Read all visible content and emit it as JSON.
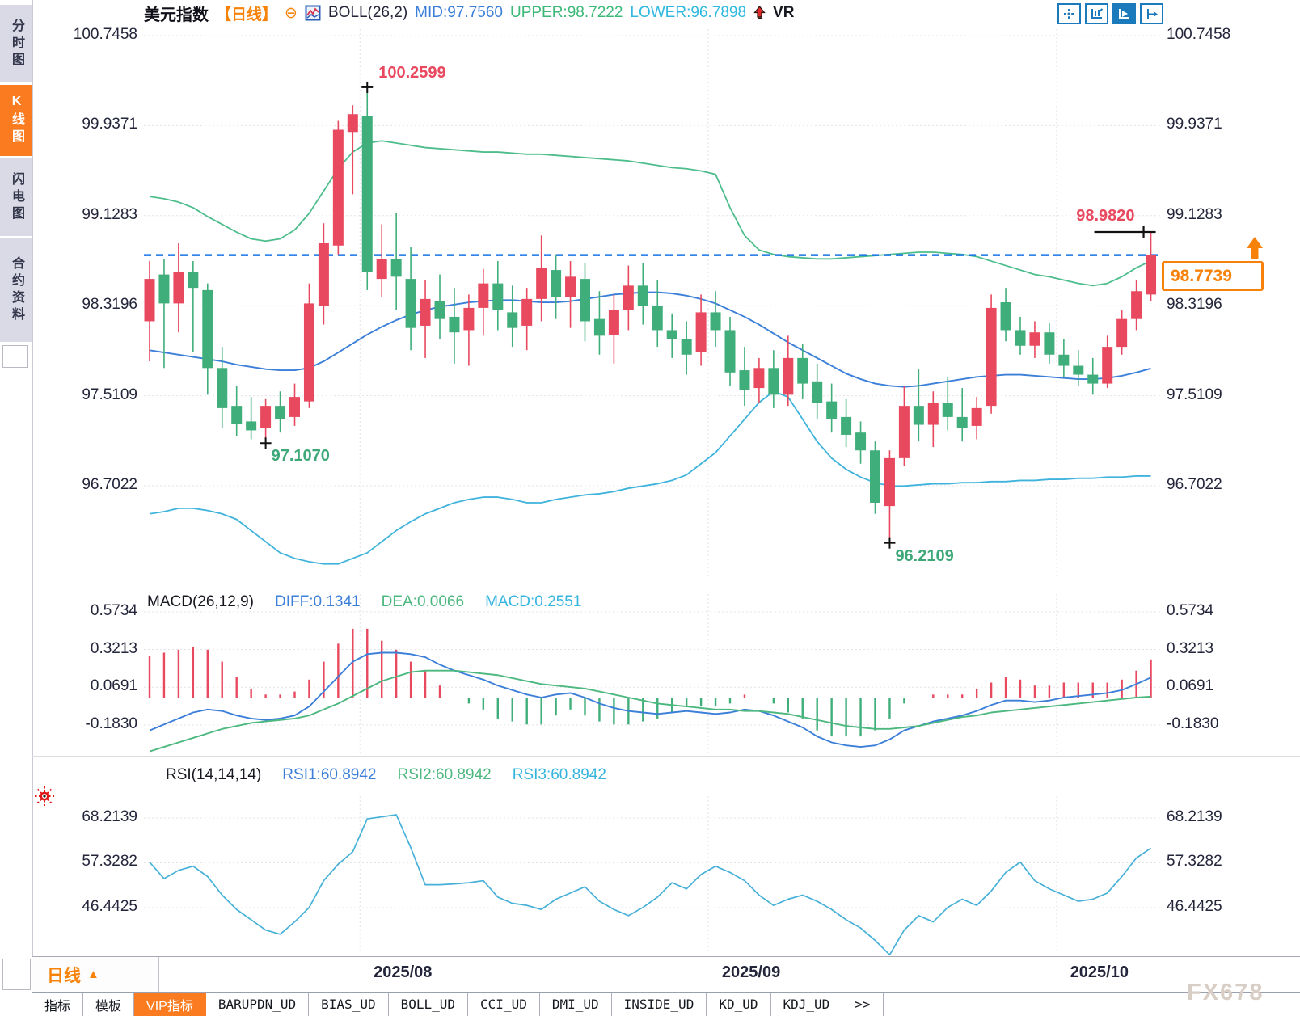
{
  "app": {
    "watermark": "FX678"
  },
  "sidebar": {
    "items": [
      {
        "label": "分时图",
        "active": false
      },
      {
        "label": "K线图",
        "active": true
      },
      {
        "label": "闪电图",
        "active": false
      },
      {
        "label": "合约资料",
        "active": false
      }
    ]
  },
  "header": {
    "title": "美元指数",
    "period_tag": "【日线】",
    "collapse_glyph": "⊖",
    "indicator_name": "BOLL(26,2)",
    "mid_label": "MID:97.7560",
    "upper_label": "UPPER:98.7222",
    "lower_label": "LOWER:96.7898",
    "vr_label": "VR"
  },
  "toolbar": {
    "icons": [
      "crosshair-icon",
      "axis-zoom-icon",
      "axis-play-icon",
      "axis-pan-right-icon"
    ]
  },
  "colors": {
    "up_candle": "#e8495f",
    "down_candle": "#3fae7a",
    "boll_upper": "#4dbd8c",
    "boll_mid": "#3b7fd9",
    "boll_lower": "#3fb3dc",
    "dashed_level": "#1874e8",
    "macd_diff": "#3b7fd9",
    "macd_dea": "#4cb87f",
    "rsi_line": "#45b0d8",
    "annotation_red": "#e8495f",
    "annotation_green": "#3fa878",
    "accent_orange": "#f7820a",
    "grid": "#e4e4e8"
  },
  "chart_data": {
    "type": "candlestick",
    "title": "美元指数 日线 (US Dollar Index daily with BOLL(26,2))",
    "y_axis_labels": [
      "100.7458",
      "99.9371",
      "99.1283",
      "98.3196",
      "97.5109",
      "96.7022"
    ],
    "ylim": [
      95.95,
      100.85
    ],
    "grid": "dotted",
    "current_price": {
      "value": "98.7739",
      "numeric": 98.7739
    },
    "months": [
      {
        "label": "2025/08",
        "start_index": 15
      },
      {
        "label": "2025/09",
        "start_index": 39
      },
      {
        "label": "2025/10",
        "start_index": 63
      }
    ],
    "annotations": [
      {
        "text": "100.2599",
        "index": 15,
        "anchor": "high",
        "color": "#e8495f",
        "marker": "cross"
      },
      {
        "text": "97.1070",
        "index": 8,
        "anchor": "low",
        "color": "#3fa878",
        "marker": "cross"
      },
      {
        "text": "98.9820",
        "index": 69,
        "anchor": "high",
        "color": "#e8495f",
        "marker": "tick-line"
      },
      {
        "text": "96.2109",
        "index": 51,
        "anchor": "low",
        "color": "#3fa878",
        "marker": "cross"
      }
    ],
    "candles": [
      [
        98.18,
        98.72,
        97.82,
        98.56
      ],
      [
        98.6,
        98.74,
        97.76,
        98.34
      ],
      [
        98.34,
        98.88,
        98.08,
        98.62
      ],
      [
        98.62,
        98.72,
        97.9,
        98.48
      ],
      [
        98.46,
        98.52,
        97.52,
        97.76
      ],
      [
        97.76,
        97.95,
        97.22,
        97.4
      ],
      [
        97.42,
        97.6,
        97.15,
        97.26
      ],
      [
        97.28,
        97.5,
        97.12,
        97.2
      ],
      [
        97.22,
        97.48,
        97.107,
        97.42
      ],
      [
        97.42,
        97.55,
        97.18,
        97.3
      ],
      [
        97.32,
        97.62,
        97.24,
        97.5
      ],
      [
        97.46,
        98.52,
        97.4,
        98.34
      ],
      [
        98.32,
        99.06,
        98.15,
        98.88
      ],
      [
        98.86,
        99.98,
        98.78,
        99.9
      ],
      [
        99.88,
        100.12,
        99.32,
        100.04
      ],
      [
        100.02,
        100.2599,
        98.46,
        98.62
      ],
      [
        98.56,
        99.05,
        98.4,
        98.74
      ],
      [
        98.74,
        99.15,
        98.28,
        98.58
      ],
      [
        98.56,
        98.85,
        97.92,
        98.12
      ],
      [
        98.14,
        98.55,
        97.85,
        98.38
      ],
      [
        98.36,
        98.6,
        98.02,
        98.2
      ],
      [
        98.22,
        98.48,
        97.8,
        98.08
      ],
      [
        98.1,
        98.42,
        97.78,
        98.3
      ],
      [
        98.3,
        98.65,
        98.05,
        98.52
      ],
      [
        98.52,
        98.72,
        98.1,
        98.28
      ],
      [
        98.26,
        98.5,
        97.95,
        98.12
      ],
      [
        98.14,
        98.48,
        97.92,
        98.38
      ],
      [
        98.38,
        98.95,
        98.18,
        98.66
      ],
      [
        98.64,
        98.78,
        98.2,
        98.4
      ],
      [
        98.4,
        98.72,
        98.12,
        98.58
      ],
      [
        98.56,
        98.7,
        98.0,
        98.18
      ],
      [
        98.2,
        98.45,
        97.88,
        98.05
      ],
      [
        98.06,
        98.42,
        97.8,
        98.28
      ],
      [
        98.28,
        98.68,
        98.1,
        98.5
      ],
      [
        98.5,
        98.7,
        98.15,
        98.32
      ],
      [
        98.32,
        98.55,
        97.95,
        98.1
      ],
      [
        98.1,
        98.25,
        97.85,
        98.02
      ],
      [
        98.02,
        98.18,
        97.7,
        97.88
      ],
      [
        97.9,
        98.42,
        97.78,
        98.26
      ],
      [
        98.26,
        98.45,
        97.95,
        98.1
      ],
      [
        98.1,
        98.22,
        97.6,
        97.72
      ],
      [
        97.74,
        97.95,
        97.42,
        97.56
      ],
      [
        97.58,
        97.85,
        97.45,
        97.76
      ],
      [
        97.76,
        97.92,
        97.4,
        97.52
      ],
      [
        97.52,
        98.05,
        97.42,
        97.85
      ],
      [
        97.85,
        97.98,
        97.48,
        97.62
      ],
      [
        97.64,
        97.8,
        97.3,
        97.45
      ],
      [
        97.46,
        97.62,
        97.18,
        97.3
      ],
      [
        97.32,
        97.48,
        97.05,
        97.16
      ],
      [
        97.18,
        97.28,
        96.9,
        97.02
      ],
      [
        97.02,
        97.1,
        96.45,
        96.55
      ],
      [
        96.52,
        97.02,
        96.2109,
        96.95
      ],
      [
        96.95,
        97.6,
        96.88,
        97.42
      ],
      [
        97.42,
        97.75,
        97.1,
        97.25
      ],
      [
        97.25,
        97.55,
        97.05,
        97.45
      ],
      [
        97.45,
        97.68,
        97.2,
        97.32
      ],
      [
        97.32,
        97.58,
        97.1,
        97.22
      ],
      [
        97.24,
        97.5,
        97.12,
        97.4
      ],
      [
        97.42,
        98.42,
        97.35,
        98.3
      ],
      [
        98.35,
        98.48,
        98.0,
        98.1
      ],
      [
        98.1,
        98.22,
        97.88,
        97.96
      ],
      [
        97.96,
        98.18,
        97.85,
        98.08
      ],
      [
        98.08,
        98.16,
        97.8,
        97.88
      ],
      [
        97.88,
        98.02,
        97.68,
        97.78
      ],
      [
        97.78,
        97.92,
        97.6,
        97.7
      ],
      [
        97.7,
        97.85,
        97.52,
        97.62
      ],
      [
        97.62,
        98.05,
        97.58,
        97.95
      ],
      [
        97.95,
        98.28,
        97.88,
        98.2
      ],
      [
        98.2,
        98.55,
        98.1,
        98.45
      ],
      [
        98.42,
        98.982,
        98.36,
        98.7739
      ]
    ],
    "boll": {
      "upper": [
        99.3,
        99.28,
        99.25,
        99.2,
        99.12,
        99.05,
        98.98,
        98.92,
        98.9,
        98.92,
        99.0,
        99.15,
        99.35,
        99.55,
        99.7,
        99.78,
        99.8,
        99.78,
        99.76,
        99.74,
        99.73,
        99.72,
        99.71,
        99.7,
        99.7,
        99.69,
        99.68,
        99.68,
        99.67,
        99.66,
        99.65,
        99.64,
        99.63,
        99.62,
        99.6,
        99.58,
        99.56,
        99.55,
        99.53,
        99.5,
        99.2,
        98.95,
        98.82,
        98.78,
        98.76,
        98.75,
        98.74,
        98.74,
        98.75,
        98.76,
        98.77,
        98.78,
        98.79,
        98.8,
        98.8,
        98.79,
        98.78,
        98.76,
        98.72,
        98.68,
        98.64,
        98.6,
        98.58,
        98.55,
        98.52,
        98.5,
        98.52,
        98.58,
        98.66,
        98.7222
      ],
      "mid": [
        97.92,
        97.9,
        97.88,
        97.86,
        97.84,
        97.82,
        97.79,
        97.77,
        97.75,
        97.74,
        97.74,
        97.76,
        97.82,
        97.9,
        97.98,
        98.06,
        98.13,
        98.19,
        98.24,
        98.28,
        98.31,
        98.33,
        98.35,
        98.36,
        98.37,
        98.37,
        98.36,
        98.35,
        98.35,
        98.36,
        98.38,
        98.4,
        98.42,
        98.43,
        98.44,
        98.44,
        98.43,
        98.41,
        98.38,
        98.34,
        98.28,
        98.22,
        98.15,
        98.07,
        97.99,
        97.92,
        97.85,
        97.78,
        97.71,
        97.66,
        97.62,
        97.6,
        97.59,
        97.6,
        97.62,
        97.64,
        97.66,
        97.68,
        97.69,
        97.7,
        97.7,
        97.69,
        97.68,
        97.67,
        97.66,
        97.66,
        97.67,
        97.69,
        97.72,
        97.756
      ],
      "lower": [
        96.45,
        96.47,
        96.5,
        96.5,
        96.48,
        96.45,
        96.4,
        96.3,
        96.2,
        96.1,
        96.05,
        96.02,
        96.0,
        96.0,
        96.05,
        96.1,
        96.2,
        96.3,
        96.38,
        96.45,
        96.5,
        96.55,
        96.58,
        96.6,
        96.6,
        96.58,
        96.55,
        96.55,
        96.58,
        96.6,
        96.62,
        96.63,
        96.65,
        96.68,
        96.7,
        96.72,
        96.75,
        96.8,
        96.9,
        97.0,
        97.15,
        97.3,
        97.45,
        97.55,
        97.5,
        97.3,
        97.1,
        96.95,
        96.85,
        96.78,
        96.73,
        96.7,
        96.7,
        96.71,
        96.72,
        96.72,
        96.73,
        96.73,
        96.74,
        96.74,
        96.75,
        96.75,
        96.76,
        96.76,
        96.77,
        96.77,
        96.78,
        96.78,
        96.79,
        96.7898
      ]
    },
    "macd": {
      "y_axis_labels": [
        "0.5734",
        "0.3213",
        "0.0691",
        "-0.1830"
      ],
      "note": "histogram = 2 * (diff - dea)",
      "diff": [
        -0.22,
        -0.18,
        -0.14,
        -0.1,
        -0.08,
        -0.09,
        -0.12,
        -0.14,
        -0.15,
        -0.14,
        -0.12,
        -0.06,
        0.04,
        0.14,
        0.24,
        0.29,
        0.3,
        0.3,
        0.29,
        0.27,
        0.22,
        0.18,
        0.15,
        0.12,
        0.08,
        0.05,
        0.02,
        0.0,
        0.02,
        0.03,
        0.0,
        -0.04,
        -0.07,
        -0.09,
        -0.1,
        -0.11,
        -0.1,
        -0.09,
        -0.1,
        -0.11,
        -0.1,
        -0.08,
        -0.09,
        -0.12,
        -0.16,
        -0.2,
        -0.26,
        -0.3,
        -0.32,
        -0.33,
        -0.32,
        -0.28,
        -0.22,
        -0.19,
        -0.16,
        -0.14,
        -0.12,
        -0.09,
        -0.05,
        -0.02,
        -0.02,
        -0.03,
        -0.02,
        0.0,
        0.01,
        0.02,
        0.03,
        0.05,
        0.09,
        0.1341
      ],
      "dea": [
        -0.36,
        -0.33,
        -0.3,
        -0.27,
        -0.24,
        -0.21,
        -0.19,
        -0.17,
        -0.16,
        -0.15,
        -0.14,
        -0.12,
        -0.08,
        -0.04,
        0.01,
        0.06,
        0.11,
        0.14,
        0.17,
        0.18,
        0.18,
        0.18,
        0.17,
        0.16,
        0.15,
        0.13,
        0.11,
        0.09,
        0.08,
        0.07,
        0.06,
        0.04,
        0.02,
        0.0,
        -0.02,
        -0.04,
        -0.05,
        -0.06,
        -0.07,
        -0.08,
        -0.08,
        -0.09,
        -0.09,
        -0.1,
        -0.11,
        -0.13,
        -0.15,
        -0.17,
        -0.19,
        -0.2,
        -0.21,
        -0.21,
        -0.2,
        -0.19,
        -0.17,
        -0.15,
        -0.13,
        -0.12,
        -0.1,
        -0.09,
        -0.08,
        -0.07,
        -0.06,
        -0.05,
        -0.04,
        -0.03,
        -0.02,
        -0.01,
        0.0,
        0.0066
      ]
    },
    "rsi": {
      "y_axis_labels": [
        "68.2139",
        "57.3282",
        "46.4425"
      ],
      "values": [
        57.5,
        53.5,
        55.5,
        56.5,
        54.0,
        49.5,
        46.0,
        43.5,
        41.0,
        40.0,
        43.0,
        46.5,
        53.0,
        57.0,
        60.0,
        68.0,
        68.5,
        69.0,
        61.0,
        52.0,
        52.0,
        52.2,
        52.5,
        53.0,
        49.0,
        47.5,
        47.0,
        46.0,
        48.5,
        50.0,
        51.5,
        48.0,
        46.0,
        44.5,
        46.5,
        49.0,
        52.5,
        51.0,
        54.5,
        56.5,
        55.0,
        53.0,
        49.5,
        47.0,
        48.5,
        49.5,
        48.0,
        46.0,
        43.5,
        41.5,
        38.5,
        35.0,
        41.0,
        44.5,
        43.0,
        46.5,
        48.5,
        47.0,
        50.5,
        55.0,
        57.5,
        53.0,
        51.0,
        49.5,
        48.0,
        48.5,
        50.0,
        54.0,
        58.5,
        60.8942
      ]
    }
  },
  "macd_panel": {
    "name": "MACD(26,12,9)",
    "diff_label": "DIFF:0.1341",
    "dea_label": "DEA:0.0066",
    "macd_label": "MACD:0.2551"
  },
  "rsi_panel": {
    "name": "RSI(14,14,14)",
    "rsi1_label": "RSI1:60.8942",
    "rsi2_label": "RSI2:60.8942",
    "rsi3_label": "RSI3:60.8942"
  },
  "x_axis": {
    "period_label": "日线",
    "period_arrow": "▲"
  },
  "bottom_tabs": [
    {
      "label": "指标",
      "cn": true,
      "active": false
    },
    {
      "label": "模板",
      "cn": true,
      "active": false
    },
    {
      "label": "VIP指标",
      "cn": true,
      "active": true
    },
    {
      "label": "BARUPDN_UD",
      "cn": false,
      "active": false
    },
    {
      "label": "BIAS_UD",
      "cn": false,
      "active": false
    },
    {
      "label": "BOLL_UD",
      "cn": false,
      "active": false
    },
    {
      "label": "CCI_UD",
      "cn": false,
      "active": false
    },
    {
      "label": "DMI_UD",
      "cn": false,
      "active": false
    },
    {
      "label": "INSIDE_UD",
      "cn": false,
      "active": false
    },
    {
      "label": "KD_UD",
      "cn": false,
      "active": false
    },
    {
      "label": "KDJ_UD",
      "cn": false,
      "active": false
    },
    {
      "label": "&gt;&gt;",
      "plain": ">>",
      "cn": false,
      "active": false
    }
  ]
}
